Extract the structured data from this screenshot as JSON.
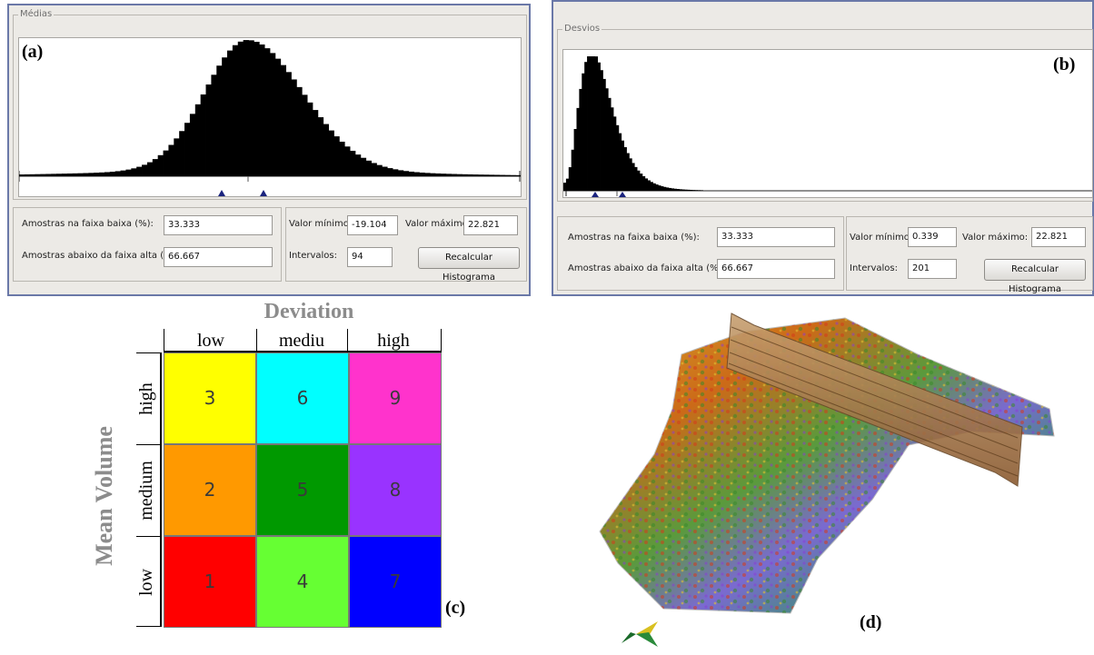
{
  "panel_a": {
    "legend": "Médias",
    "tag": "(a)",
    "low_samples_label": "Amostras na faixa baixa (%):",
    "low_samples_value": "33.333",
    "high_samples_label": "Amostras abaixo da faixa alta (%):",
    "high_samples_value": "66.667",
    "min_label": "Valor mínimo:",
    "min_value": "-19.104",
    "max_label": "Valor máximo:",
    "max_value": "22.821",
    "intervals_label": "Intervalos:",
    "intervals_value": "94",
    "button": "Recalcular Histograma"
  },
  "panel_b": {
    "legend": "Desvios",
    "tag": "(b)",
    "low_samples_label": "Amostras na faixa baixa (%):",
    "low_samples_value": "33.333",
    "high_samples_label": "Amostras abaixo da faixa alta (%):",
    "high_samples_value": "66.667",
    "min_label": "Valor mínimo:",
    "min_value": "0.339",
    "max_label": "Valor máximo:",
    "max_value": "22.821",
    "intervals_label": "Intervalos:",
    "intervals_value": "201",
    "button": "Recalcular Histograma"
  },
  "matrix": {
    "title": "Deviation",
    "col_headers": [
      "low",
      "mediu",
      "high"
    ],
    "row_title": "Mean Volume",
    "row_headers": [
      "high",
      "medium",
      "low"
    ],
    "cells": [
      {
        "label": "3",
        "color": "#ffff00"
      },
      {
        "label": "6",
        "color": "#00ffff"
      },
      {
        "label": "9",
        "color": "#ff33cc"
      },
      {
        "label": "2",
        "color": "#ff9900"
      },
      {
        "label": "5",
        "color": "#009900"
      },
      {
        "label": "8",
        "color": "#9933ff"
      },
      {
        "label": "1",
        "color": "#ff0000"
      },
      {
        "label": "4",
        "color": "#66ff33"
      },
      {
        "label": "7",
        "color": "#0000ff"
      }
    ],
    "tag": "(c)"
  },
  "view3d": {
    "tag": "(d)",
    "compass_icon": "compass-arrow-icon"
  },
  "colors": {
    "panel_bg": "#eceae6",
    "panel_border": "#6a78a8",
    "histogram": "#000000",
    "marker": "#1a237e"
  }
}
